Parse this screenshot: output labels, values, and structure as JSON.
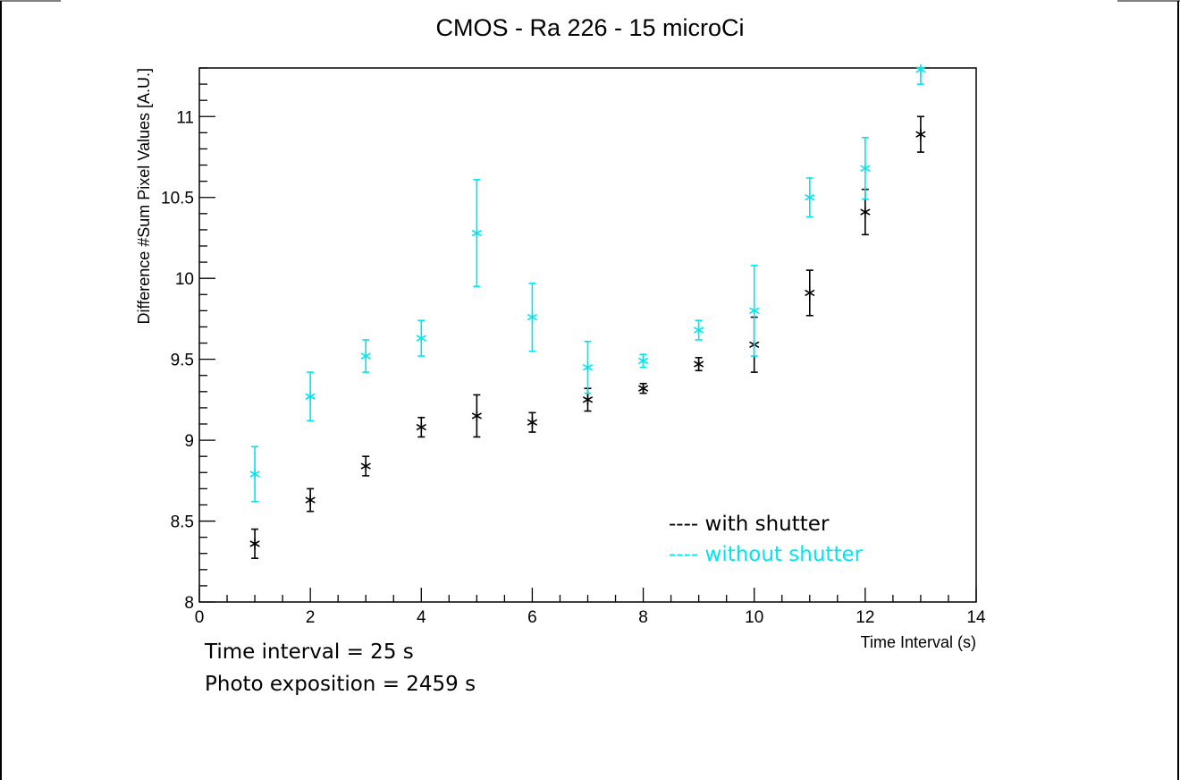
{
  "chart_data": {
    "type": "scatter",
    "title": "CMOS - Ra 226 - 15 microCi",
    "xlabel": "Time Interval (s)",
    "ylabel": "Difference #Sum Pixel Values [A.U.]",
    "xlim": [
      0,
      14
    ],
    "ylim": [
      8,
      11.3
    ],
    "x_ticks": [
      0,
      2,
      4,
      6,
      8,
      10,
      12,
      14
    ],
    "y_ticks": [
      8,
      8.5,
      9,
      9.5,
      10,
      10.5,
      11
    ],
    "x_tick_labels": [
      "0",
      "2",
      "4",
      "6",
      "8",
      "10",
      "12",
      "14"
    ],
    "y_tick_labels": [
      "8",
      "8.5",
      "9",
      "9.5",
      "10",
      "10.5",
      "11"
    ],
    "grid": false,
    "legend_position": "bottom-right",
    "series": [
      {
        "name": "---- with shutter",
        "color": "#000000",
        "marker": "asterisk",
        "x": [
          1,
          2,
          3,
          4,
          5,
          6,
          7,
          8,
          9,
          10,
          11,
          12,
          13
        ],
        "y": [
          8.36,
          8.63,
          8.84,
          9.08,
          9.15,
          9.11,
          9.25,
          9.32,
          9.47,
          9.59,
          9.91,
          10.41,
          10.89
        ],
        "yerr": [
          0.09,
          0.07,
          0.06,
          0.06,
          0.13,
          0.06,
          0.07,
          0.03,
          0.04,
          0.17,
          0.14,
          0.14,
          0.11
        ]
      },
      {
        "name": "---- without shutter",
        "color": "#00e5ee",
        "marker": "asterisk",
        "x": [
          1,
          2,
          3,
          4,
          5,
          6,
          7,
          8,
          9,
          10,
          11,
          12,
          13
        ],
        "y": [
          8.79,
          9.27,
          9.52,
          9.63,
          10.28,
          9.76,
          9.45,
          9.49,
          9.68,
          9.8,
          10.5,
          10.68,
          11.29
        ],
        "yerr": [
          0.17,
          0.15,
          0.1,
          0.11,
          0.33,
          0.21,
          0.16,
          0.04,
          0.06,
          0.28,
          0.12,
          0.19,
          0.09
        ]
      }
    ],
    "annotations": [
      "Time interval = 25 s",
      "Photo exposition = 2459 s"
    ]
  }
}
